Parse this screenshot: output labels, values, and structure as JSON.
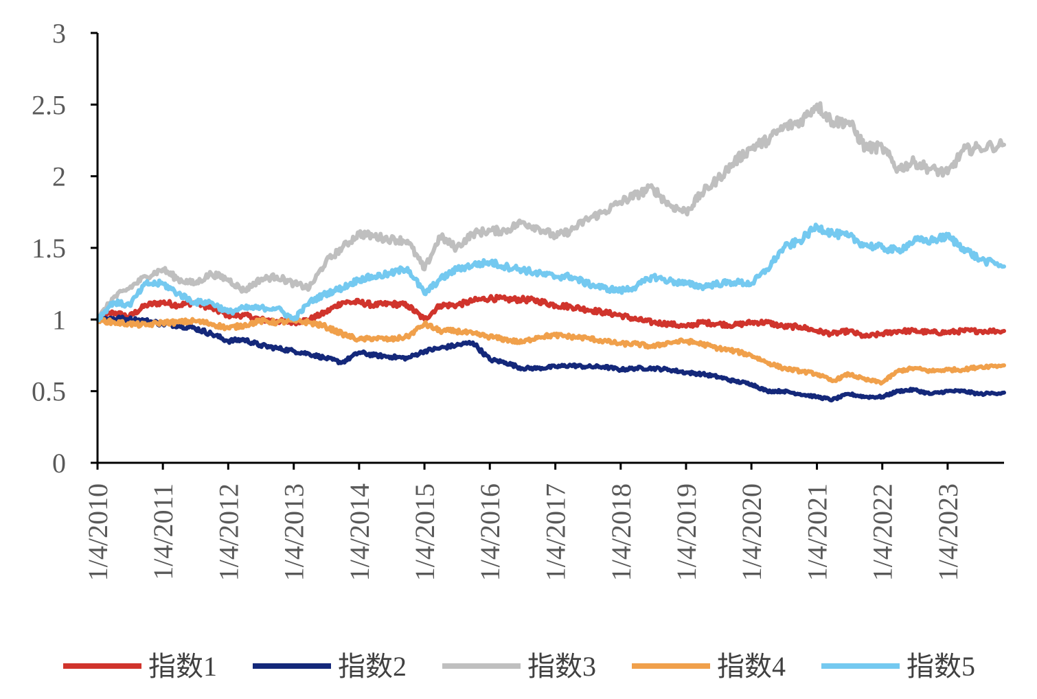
{
  "chart_data": {
    "type": "line",
    "title": "",
    "xlabel": "",
    "ylabel": "",
    "ylim": [
      0,
      3
    ],
    "yticks": [
      "0",
      "0.5",
      "1",
      "1.5",
      "2",
      "2.5",
      "3"
    ],
    "x_tick_labels": [
      "1/4/2010",
      "1/4/2011",
      "1/4/2012",
      "1/4/2013",
      "1/4/2014",
      "1/4/2015",
      "1/4/2016",
      "1/4/2017",
      "1/4/2018",
      "1/4/2019",
      "1/4/2020",
      "1/4/2021",
      "1/4/2022",
      "1/4/2023"
    ],
    "x_range": [
      "2010-01-04",
      "2023-11-15"
    ],
    "grid": false,
    "legend_position": "bottom",
    "x": [
      "2010-01-04",
      "2010-04-01",
      "2010-07-01",
      "2010-10-01",
      "2011-01-04",
      "2011-04-01",
      "2011-07-01",
      "2011-10-01",
      "2012-01-04",
      "2012-04-01",
      "2012-07-01",
      "2012-10-01",
      "2013-01-04",
      "2013-04-01",
      "2013-07-01",
      "2013-10-01",
      "2014-01-04",
      "2014-04-01",
      "2014-07-01",
      "2014-10-01",
      "2015-01-04",
      "2015-04-01",
      "2015-07-01",
      "2015-10-01",
      "2016-01-04",
      "2016-04-01",
      "2016-07-01",
      "2016-10-01",
      "2017-01-04",
      "2017-04-01",
      "2017-07-01",
      "2017-10-01",
      "2018-01-04",
      "2018-04-01",
      "2018-07-01",
      "2018-10-01",
      "2019-01-04",
      "2019-04-01",
      "2019-07-01",
      "2019-10-01",
      "2020-01-04",
      "2020-04-01",
      "2020-07-01",
      "2020-10-01",
      "2021-01-04",
      "2021-04-01",
      "2021-07-01",
      "2021-10-01",
      "2022-01-04",
      "2022-04-01",
      "2022-07-01",
      "2022-10-01",
      "2023-01-04",
      "2023-04-01",
      "2023-07-01",
      "2023-11-15"
    ],
    "series": [
      {
        "name": "指数1",
        "color": "#d0342c",
        "values": [
          1.0,
          1.05,
          1.02,
          1.1,
          1.12,
          1.1,
          1.12,
          1.08,
          1.03,
          1.03,
          1.0,
          0.99,
          0.98,
          1.0,
          1.05,
          1.12,
          1.12,
          1.1,
          1.11,
          1.1,
          1.0,
          1.1,
          1.1,
          1.13,
          1.15,
          1.14,
          1.14,
          1.13,
          1.1,
          1.09,
          1.07,
          1.05,
          1.03,
          1.0,
          0.98,
          0.97,
          0.95,
          0.98,
          0.97,
          0.96,
          0.98,
          0.98,
          0.95,
          0.95,
          0.92,
          0.9,
          0.92,
          0.88,
          0.9,
          0.92,
          0.92,
          0.91,
          0.91,
          0.92,
          0.92,
          0.92
        ]
      },
      {
        "name": "指数2",
        "color": "#14287a",
        "values": [
          1.0,
          1.01,
          1.0,
          0.99,
          0.97,
          0.96,
          0.94,
          0.9,
          0.85,
          0.86,
          0.82,
          0.8,
          0.78,
          0.76,
          0.73,
          0.7,
          0.77,
          0.75,
          0.74,
          0.73,
          0.78,
          0.8,
          0.82,
          0.84,
          0.72,
          0.7,
          0.66,
          0.66,
          0.67,
          0.68,
          0.67,
          0.67,
          0.65,
          0.66,
          0.66,
          0.65,
          0.63,
          0.62,
          0.6,
          0.57,
          0.55,
          0.5,
          0.5,
          0.48,
          0.46,
          0.44,
          0.48,
          0.46,
          0.46,
          0.5,
          0.51,
          0.48,
          0.5,
          0.5,
          0.48,
          0.49
        ]
      },
      {
        "name": "指数3",
        "color": "#bfbfbf",
        "values": [
          1.0,
          1.15,
          1.22,
          1.3,
          1.35,
          1.28,
          1.25,
          1.32,
          1.28,
          1.2,
          1.28,
          1.3,
          1.25,
          1.22,
          1.4,
          1.5,
          1.6,
          1.58,
          1.56,
          1.55,
          1.35,
          1.58,
          1.5,
          1.6,
          1.62,
          1.62,
          1.68,
          1.64,
          1.58,
          1.62,
          1.7,
          1.75,
          1.82,
          1.87,
          1.92,
          1.8,
          1.75,
          1.88,
          1.98,
          2.1,
          2.2,
          2.25,
          2.34,
          2.38,
          2.5,
          2.38,
          2.38,
          2.2,
          2.2,
          2.05,
          2.1,
          2.05,
          2.02,
          2.18,
          2.2,
          2.22
        ]
      },
      {
        "name": "指数4",
        "color": "#f0a04b",
        "values": [
          1.0,
          0.98,
          0.97,
          0.96,
          0.98,
          0.98,
          0.99,
          0.97,
          0.94,
          0.96,
          0.99,
          0.98,
          0.99,
          0.98,
          0.95,
          0.9,
          0.86,
          0.87,
          0.86,
          0.88,
          0.97,
          0.92,
          0.92,
          0.9,
          0.88,
          0.86,
          0.84,
          0.88,
          0.89,
          0.88,
          0.87,
          0.85,
          0.83,
          0.83,
          0.81,
          0.84,
          0.85,
          0.83,
          0.8,
          0.78,
          0.75,
          0.7,
          0.66,
          0.64,
          0.62,
          0.57,
          0.62,
          0.58,
          0.56,
          0.64,
          0.66,
          0.64,
          0.65,
          0.65,
          0.67,
          0.68
        ]
      },
      {
        "name": "指数5",
        "color": "#74c9f0",
        "values": [
          1.0,
          1.12,
          1.1,
          1.25,
          1.25,
          1.18,
          1.12,
          1.12,
          1.05,
          1.08,
          1.08,
          1.08,
          1.0,
          1.12,
          1.18,
          1.22,
          1.28,
          1.3,
          1.32,
          1.36,
          1.18,
          1.28,
          1.35,
          1.38,
          1.4,
          1.37,
          1.35,
          1.32,
          1.3,
          1.3,
          1.25,
          1.22,
          1.2,
          1.23,
          1.3,
          1.27,
          1.25,
          1.23,
          1.25,
          1.26,
          1.25,
          1.35,
          1.5,
          1.55,
          1.65,
          1.6,
          1.58,
          1.52,
          1.5,
          1.48,
          1.55,
          1.55,
          1.58,
          1.5,
          1.42,
          1.37
        ]
      }
    ]
  }
}
